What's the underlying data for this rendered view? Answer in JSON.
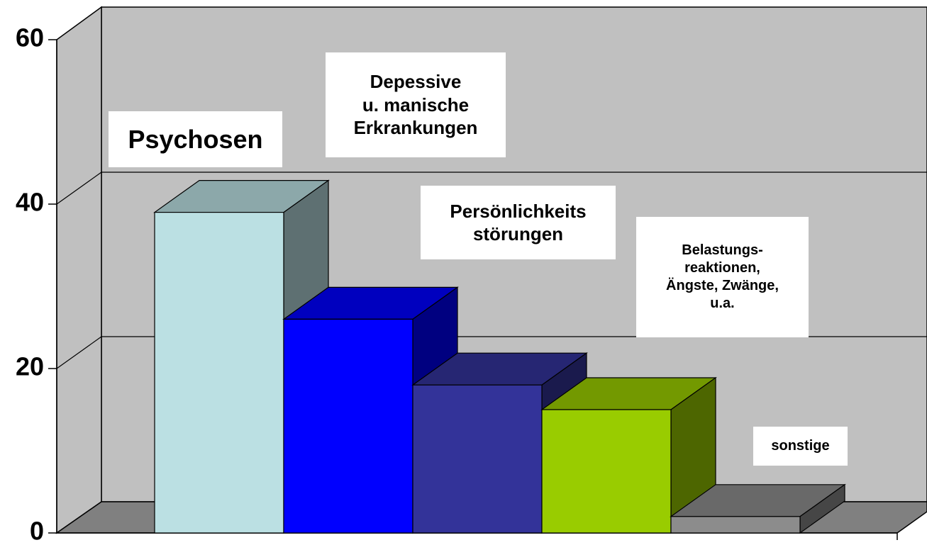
{
  "chart_data": {
    "type": "bar3d",
    "categories": [
      "Psychosen",
      "Depessive\nu. manische\nErkrankungen",
      "Persönlichkeits\nstörungen",
      "Belastungs-\nreaktionen,\nÄngste, Zwänge,\nu.a.",
      "sonstige"
    ],
    "values": [
      39,
      26,
      18,
      15,
      2
    ],
    "colors": [
      "#bbe0e3",
      "#0000ff",
      "#333399",
      "#99cc00",
      "#8c8c8c"
    ],
    "ylim": [
      0,
      60
    ],
    "yticks": [
      0,
      20,
      40,
      60
    ],
    "grid": true
  }
}
